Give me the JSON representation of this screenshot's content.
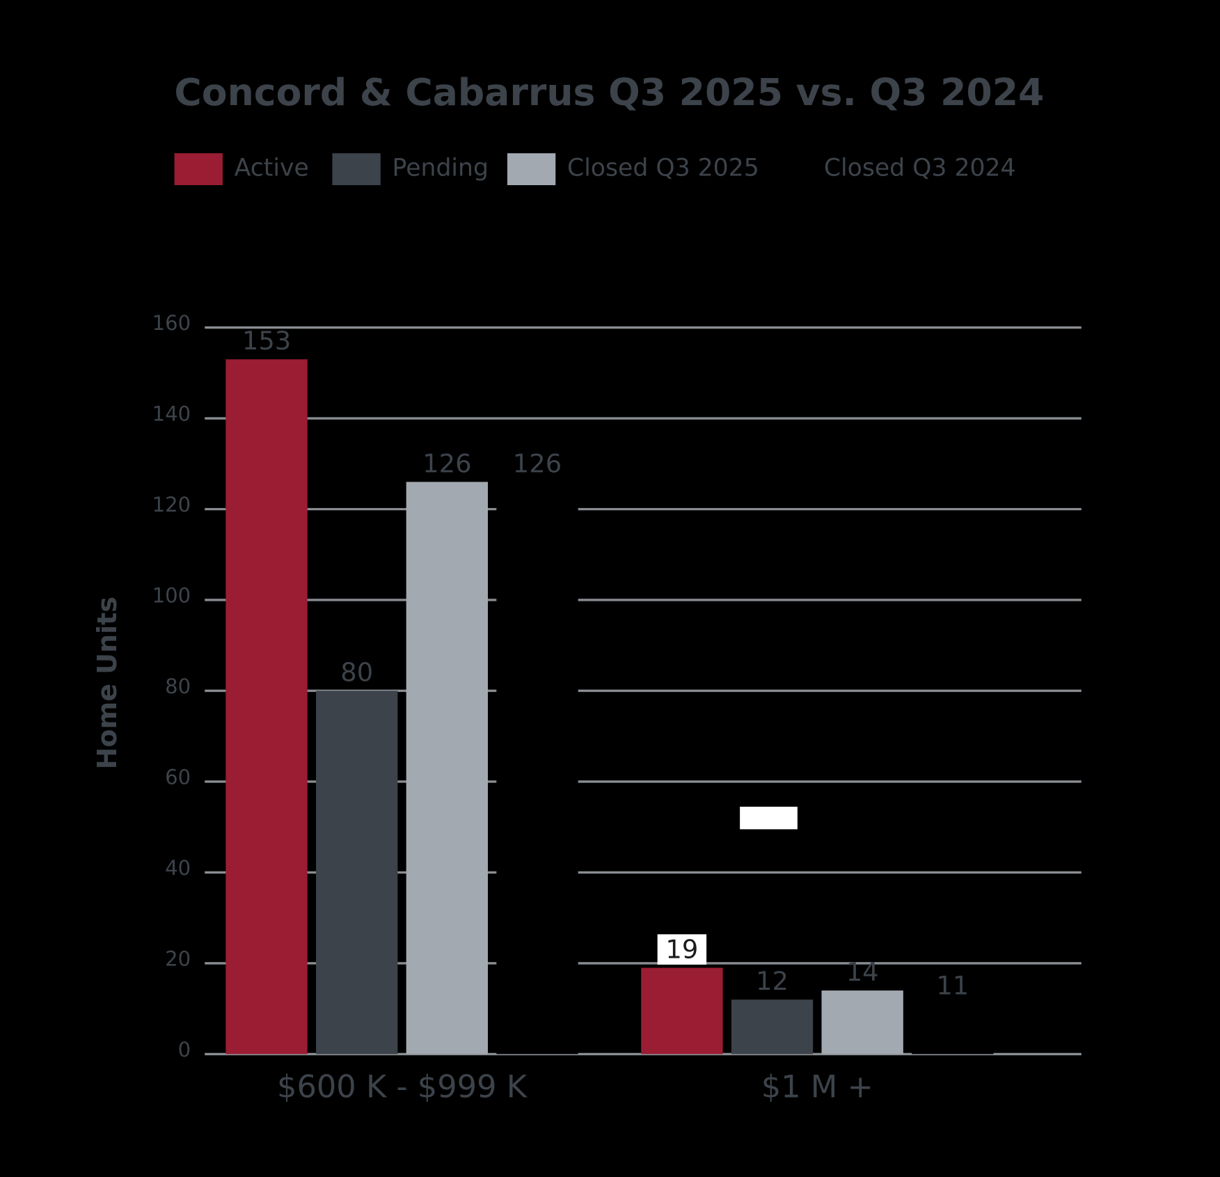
{
  "chart_data": {
    "type": "bar",
    "title": "Concord & Cabarrus Q3 2025 vs. Q3 2024",
    "y_label": "Home Units",
    "categories": [
      "$600 K - $999 K",
      "$1 M +"
    ],
    "series": [
      {
        "name": "Active",
        "color": "#9b1d33",
        "values": [
          153,
          19
        ]
      },
      {
        "name": "Pending",
        "color": "#3d434a",
        "values": [
          80,
          12
        ]
      },
      {
        "name": "Closed Q3 2025",
        "color": "#a3a9b0",
        "values": [
          126,
          14
        ]
      },
      {
        "name": "Closed Q3 2024",
        "color": "#000000",
        "values": [
          126,
          11
        ]
      }
    ],
    "ylim": [
      0,
      160
    ],
    "yticks": [
      0,
      20,
      40,
      60,
      80,
      100,
      120,
      140,
      160
    ],
    "grid": true,
    "legend": "top"
  }
}
